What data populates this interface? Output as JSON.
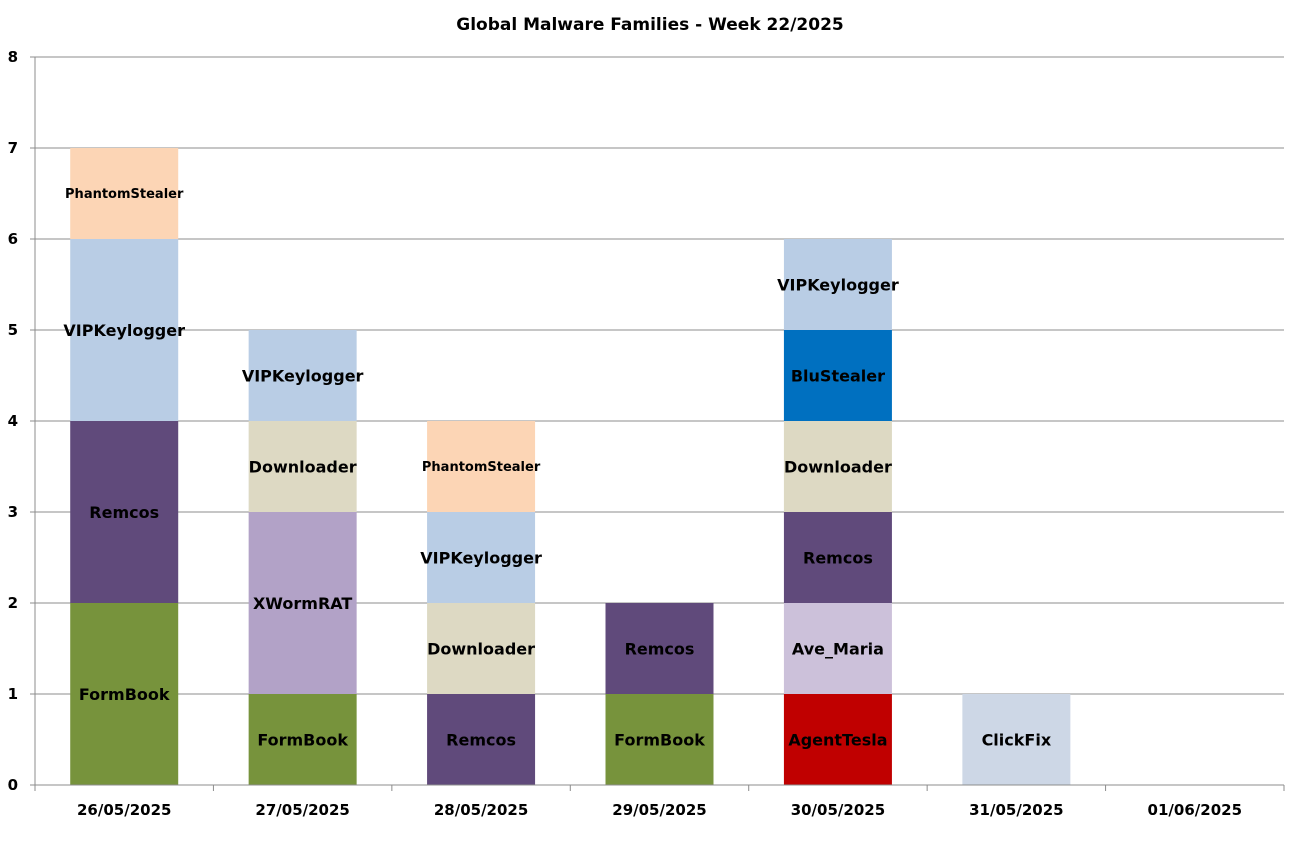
{
  "chart_data": {
    "type": "bar",
    "stacked": true,
    "title": "Global Malware Families - Week 22/2025",
    "xlabel": "",
    "ylabel": "",
    "ylim": [
      0,
      8
    ],
    "yticks": [
      "0",
      "1",
      "2",
      "3",
      "4",
      "5",
      "6",
      "7",
      "8"
    ],
    "grid": true,
    "legend": "none",
    "categories": [
      "26/05/2025",
      "27/05/2025",
      "28/05/2025",
      "29/05/2025",
      "30/05/2025",
      "31/05/2025",
      "01/06/2025"
    ],
    "stacks": [
      [
        {
          "label": "FormBook",
          "value": 2,
          "color": "#77933c"
        },
        {
          "label": "Remcos",
          "value": 2,
          "color": "#604a7b"
        },
        {
          "label": "VIPKeylogger",
          "value": 2,
          "color": "#b9cde5"
        },
        {
          "label": "PhantomStealer",
          "value": 1,
          "color": "#fcd5b5"
        }
      ],
      [
        {
          "label": "FormBook",
          "value": 1,
          "color": "#77933c"
        },
        {
          "label": "XWormRAT",
          "value": 2,
          "color": "#b2a2c7"
        },
        {
          "label": "Downloader",
          "value": 1,
          "color": "#ddd9c3"
        },
        {
          "label": "VIPKeylogger",
          "value": 1,
          "color": "#b9cde5"
        }
      ],
      [
        {
          "label": "Remcos",
          "value": 1,
          "color": "#604a7b"
        },
        {
          "label": "Downloader",
          "value": 1,
          "color": "#ddd9c3"
        },
        {
          "label": "VIPKeylogger",
          "value": 1,
          "color": "#b9cde5"
        },
        {
          "label": "PhantomStealer",
          "value": 1,
          "color": "#fcd5b5"
        }
      ],
      [
        {
          "label": "FormBook",
          "value": 1,
          "color": "#77933c"
        },
        {
          "label": "Remcos",
          "value": 1,
          "color": "#604a7b"
        }
      ],
      [
        {
          "label": "AgentTesla",
          "value": 1,
          "color": "#c00000"
        },
        {
          "label": "Ave_Maria",
          "value": 1,
          "color": "#ccc1da"
        },
        {
          "label": "Remcos",
          "value": 1,
          "color": "#604a7b"
        },
        {
          "label": "Downloader",
          "value": 1,
          "color": "#ddd9c3"
        },
        {
          "label": "BluStealer",
          "value": 1,
          "color": "#0070c0"
        },
        {
          "label": "VIPKeylogger",
          "value": 1,
          "color": "#b9cde5"
        }
      ],
      [
        {
          "label": "ClickFix",
          "value": 1,
          "color": "#cdd7e6"
        }
      ],
      []
    ]
  }
}
